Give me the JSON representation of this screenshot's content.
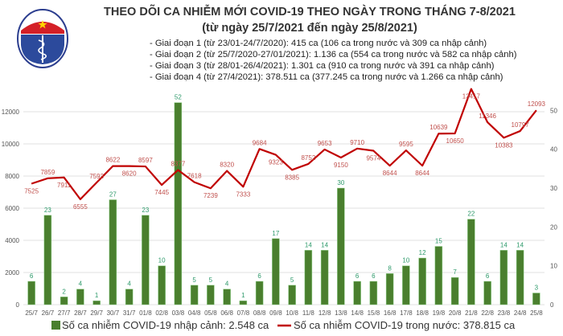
{
  "logo": {
    "text_top": "BỘ Y TẾ",
    "text_bottom": "MINISTRY OF HEALTH"
  },
  "header": {
    "title": "THEO DÕI CA NHIỄM MỚI COVID-19 THEO NGÀY TRONG THÁNG 7-8/2021",
    "subtitle": "(từ ngày 25/7/2021 đến ngày 25/8/2021)",
    "notes": [
      "- Giai đoạn 1 (từ 23/01-24/7/2020): 415 ca (106 ca trong nước và 309 ca nhập cảnh)",
      "- Giai đoạn 2 (từ 25/7/2020-27/01/2021): 1.136 ca (554 ca trong nước và 582 ca nhập cảnh)",
      "- Giai đoạn 3 (từ 28/01-26/4/2021): 1.301 ca (910 ca trong nước và 391 ca nhập cảnh)",
      "- Giai đoạn 4 (từ 27/4/2021): 378.511 ca (377.245 ca trong nước và 1.266 ca nhập cảnh)"
    ]
  },
  "chart_data": {
    "type": "bar+line",
    "categories": [
      "25/7",
      "26/7",
      "27/7",
      "28/7",
      "29/7",
      "30/7",
      "31/7",
      "01/8",
      "02/8",
      "03/8",
      "04/8",
      "05/8",
      "06/8",
      "07/8",
      "08/8",
      "09/8",
      "10/8",
      "11/8",
      "12/8",
      "13/8",
      "14/8",
      "15/8",
      "16/8",
      "17/8",
      "18/8",
      "19/8",
      "20/8",
      "21/8",
      "22/8",
      "23/8",
      "24/8",
      "25/8"
    ],
    "series": [
      {
        "name": "Số ca nhiễm COVID-19 nhập cảnh: 2.548 ca",
        "type": "bar",
        "axis": "right",
        "color": "#4a7f2e",
        "values": [
          6,
          23,
          2,
          4,
          1,
          27,
          4,
          23,
          10,
          52,
          5,
          5,
          4,
          1,
          6,
          17,
          5,
          14,
          14,
          30,
          6,
          6,
          8,
          10,
          12,
          15,
          7,
          22,
          6,
          14,
          14,
          3
        ]
      },
      {
        "name": "Số ca nhiễm COVID-19 trong nước: 378.815 ca",
        "type": "line",
        "axis": "left",
        "color": "#c00000",
        "values": [
          7525,
          7859,
          7911,
          6555,
          7593,
          8622,
          8620,
          8597,
          7445,
          8377,
          7618,
          7239,
          8320,
          7333,
          9684,
          9323,
          8385,
          8752,
          9653,
          9150,
          9710,
          9574,
          8644,
          9595,
          8644,
          10639,
          10650,
          13417,
          11346,
          10383,
          10797,
          12093
        ]
      }
    ],
    "left_axis": {
      "ylim": [
        0,
        14000
      ],
      "ticks": [
        0,
        2000,
        4000,
        6000,
        8000,
        10000,
        12000
      ]
    },
    "right_axis": {
      "ylim": [
        0,
        60
      ],
      "ticks": [
        0,
        10,
        20,
        30,
        40,
        50
      ]
    },
    "grid": true,
    "legend": "bottom"
  }
}
